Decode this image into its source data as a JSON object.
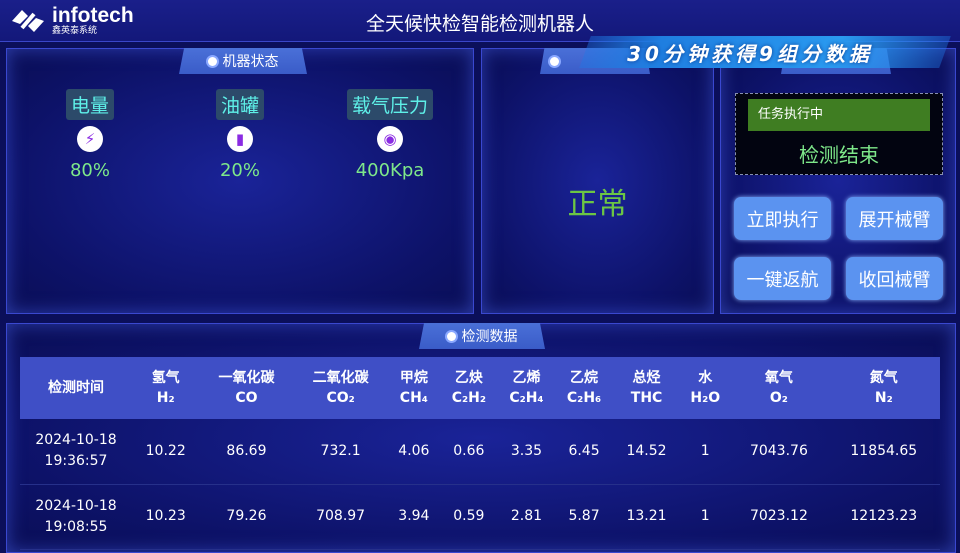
{
  "header": {
    "logo_text": "infotech",
    "logo_sub": "鑫英泰系统",
    "title": "全天候快检智能检测机器人",
    "banner": "30分钟获得9组分数据"
  },
  "machine_status": {
    "title": "机器状态",
    "items": [
      {
        "label": "电量",
        "icon": "lightning-icon",
        "value": "80%"
      },
      {
        "label": "油罐",
        "icon": "tank-icon",
        "value": "20%"
      },
      {
        "label": "载气压力",
        "icon": "gauge-icon",
        "value": "400Kpa"
      }
    ]
  },
  "status_panel": {
    "value": "正常"
  },
  "task_panel": {
    "running": "任务执行中",
    "state": "检测结束",
    "buttons": [
      "立即执行",
      "展开械臂",
      "一键返航",
      "收回械臂"
    ]
  },
  "data_panel": {
    "title": "检测数据",
    "columns": [
      [
        "检测时间",
        ""
      ],
      [
        "氢气",
        "H₂"
      ],
      [
        "一氧化碳",
        "CO"
      ],
      [
        "二氧化碳",
        "CO₂"
      ],
      [
        "甲烷",
        "CH₄"
      ],
      [
        "乙炔",
        "C₂H₂"
      ],
      [
        "乙烯",
        "C₂H₄"
      ],
      [
        "乙烷",
        "C₂H₆"
      ],
      [
        "总烃",
        "THC"
      ],
      [
        "水",
        "H₂O"
      ],
      [
        "氧气",
        "O₂"
      ],
      [
        "氮气",
        "N₂"
      ]
    ],
    "rows": [
      [
        [
          "2024-10-18",
          "19:36:57"
        ],
        "10.22",
        "86.69",
        "732.1",
        "4.06",
        "0.66",
        "3.35",
        "6.45",
        "14.52",
        "1",
        "7043.76",
        "11854.65"
      ],
      [
        [
          "2024-10-18",
          "19:08:55"
        ],
        "10.23",
        "79.26",
        "708.97",
        "3.94",
        "0.59",
        "2.81",
        "5.87",
        "13.21",
        "1",
        "7023.12",
        "12123.23"
      ]
    ]
  },
  "colors": {
    "accent": "#5b93f0",
    "value_green": "#7ee88a",
    "normal_green": "#6cc644",
    "label_cyan": "#5ef0e8"
  }
}
